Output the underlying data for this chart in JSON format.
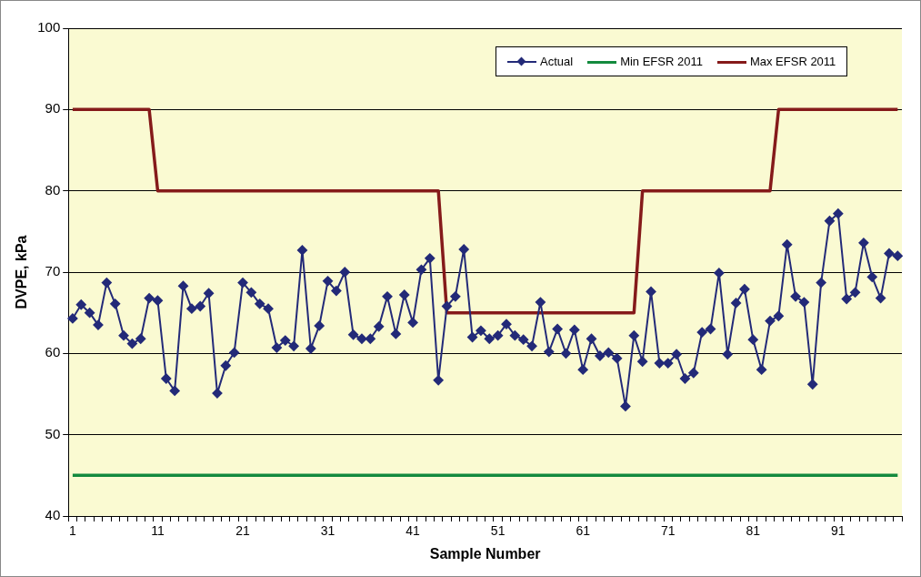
{
  "chart_data": {
    "type": "line",
    "xlabel": "Sample Number",
    "ylabel": "DVPE, kPa",
    "categories": [
      "1",
      null,
      null,
      null,
      null,
      null,
      null,
      null,
      null,
      null,
      "11",
      null,
      null,
      null,
      null,
      null,
      null,
      null,
      null,
      null,
      "21",
      null,
      null,
      null,
      null,
      null,
      null,
      null,
      null,
      null,
      "31",
      null,
      null,
      null,
      null,
      null,
      null,
      null,
      null,
      null,
      "41",
      null,
      null,
      null,
      null,
      null,
      null,
      null,
      null,
      null,
      "51",
      null,
      null,
      null,
      null,
      null,
      null,
      null,
      null,
      null,
      "61",
      null,
      null,
      null,
      null,
      null,
      null,
      null,
      null,
      null,
      "71",
      null,
      null,
      null,
      null,
      null,
      null,
      null,
      null,
      null,
      "81",
      null,
      null,
      null,
      null,
      null,
      null,
      null,
      null,
      null,
      "91",
      null,
      null,
      null,
      null,
      null,
      null,
      null
    ],
    "series": [
      {
        "name": "Actual",
        "color": "#232a78",
        "marker": "diamond",
        "values": [
          64.3,
          66,
          65,
          63.5,
          68.7,
          66.1,
          62.2,
          61.2,
          61.8,
          66.8,
          66.5,
          56.9,
          55.4,
          68.3,
          65.5,
          65.8,
          67.4,
          55.1,
          58.5,
          60.1,
          68.7,
          67.5,
          66.1,
          65.5,
          60.7,
          61.6,
          60.9,
          72.7,
          60.6,
          63.4,
          68.9,
          67.7,
          70,
          62.3,
          61.8,
          61.8,
          63.3,
          67,
          62.4,
          67.2,
          63.8,
          70.3,
          71.7,
          56.7,
          65.8,
          67,
          72.8,
          62,
          62.8,
          61.8,
          62.2,
          63.6,
          62.2,
          61.7,
          60.9,
          66.3,
          60.2,
          63,
          60,
          62.9,
          58,
          61.8,
          59.7,
          60.1,
          59.4,
          53.5,
          62.2,
          59,
          67.6,
          58.8,
          58.8,
          59.9,
          56.9,
          57.6,
          62.6,
          63,
          69.9,
          59.9,
          66.2,
          67.9,
          61.7,
          58,
          64,
          64.6,
          73.4,
          67,
          66.3,
          56.2,
          68.7,
          76.3,
          77.2,
          66.7,
          67.5,
          73.6,
          69.4,
          66.8,
          72.3,
          72
        ]
      },
      {
        "name": "Min EFSR 2011",
        "color": "#138a3e",
        "marker": "none",
        "values": [
          45,
          45,
          45,
          45,
          45,
          45,
          45,
          45,
          45,
          45,
          45,
          45,
          45,
          45,
          45,
          45,
          45,
          45,
          45,
          45,
          45,
          45,
          45,
          45,
          45,
          45,
          45,
          45,
          45,
          45,
          45,
          45,
          45,
          45,
          45,
          45,
          45,
          45,
          45,
          45,
          45,
          45,
          45,
          45,
          45,
          45,
          45,
          45,
          45,
          45,
          45,
          45,
          45,
          45,
          45,
          45,
          45,
          45,
          45,
          45,
          45,
          45,
          45,
          45,
          45,
          45,
          45,
          45,
          45,
          45,
          45,
          45,
          45,
          45,
          45,
          45,
          45,
          45,
          45,
          45,
          45,
          45,
          45,
          45,
          45,
          45,
          45,
          45,
          45,
          45,
          45,
          45,
          45,
          45,
          45,
          45,
          45,
          45
        ]
      },
      {
        "name": "Max EFSR 2011",
        "color": "#851a1a",
        "marker": "none",
        "values": [
          90,
          90,
          90,
          90,
          90,
          90,
          90,
          90,
          90,
          90,
          80,
          80,
          80,
          80,
          80,
          80,
          80,
          80,
          80,
          80,
          80,
          80,
          80,
          80,
          80,
          80,
          80,
          80,
          80,
          80,
          80,
          80,
          80,
          80,
          80,
          80,
          80,
          80,
          80,
          80,
          80,
          80,
          80,
          80,
          65,
          65,
          65,
          65,
          65,
          65,
          65,
          65,
          65,
          65,
          65,
          65,
          65,
          65,
          65,
          65,
          65,
          65,
          65,
          65,
          65,
          65,
          65,
          80,
          80,
          80,
          80,
          80,
          80,
          80,
          80,
          80,
          80,
          80,
          80,
          80,
          80,
          80,
          80,
          90,
          90,
          90,
          90,
          90,
          90,
          90,
          90,
          90,
          90,
          90,
          90,
          90,
          90,
          90
        ]
      }
    ],
    "ylim": [
      40,
      100
    ],
    "yticks": [
      40,
      50,
      60,
      70,
      80,
      90,
      100
    ],
    "grid": "y",
    "legend": "top right"
  }
}
